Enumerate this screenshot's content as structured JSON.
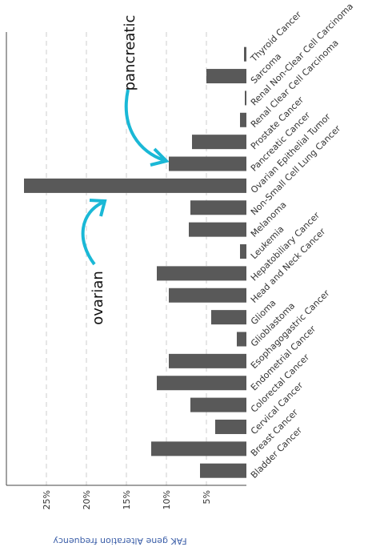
{
  "chart_data": {
    "type": "bar",
    "orientation": "horizontal",
    "categories": [
      "Thyroid Cancer",
      "Sarcoma",
      "Renal Non-Clear Cell Carcinoma",
      "Renal Clear Cell Carcinoma",
      "Prostate Cancer",
      "Pancreatic Cancer",
      "Ovarian Epithelial Tumor",
      "Non-Small Cell Lung Cancer",
      "Melanoma",
      "Leukemia",
      "Hepatobiliary Cancer",
      "Head and Neck Cancer",
      "Glioma",
      "Glioblastoma",
      "Esophagogastric Cancer",
      "Endometrial Cancer",
      "Colorectal Cancer",
      "Cervical Cancer",
      "Breast Cancer",
      "Bladder Cancer"
    ],
    "values": [
      0.3,
      5.0,
      0.2,
      0.8,
      6.8,
      9.7,
      27.8,
      7.0,
      7.2,
      0.8,
      11.2,
      9.7,
      4.4,
      1.2,
      9.7,
      11.2,
      7.0,
      3.9,
      11.9,
      5.8
    ],
    "color": "#595959",
    "xlim": [
      0,
      30
    ],
    "xticks": [
      {
        "value": 5,
        "label": "5%"
      },
      {
        "value": 10,
        "label": "10%"
      },
      {
        "value": 15,
        "label": "15%"
      },
      {
        "value": 20,
        "label": "20%"
      },
      {
        "value": 25,
        "label": "25%"
      }
    ],
    "grid": true,
    "xlabel": "FAK gene Alteration frequency",
    "annotations": [
      "pancreatic",
      "ovarian"
    ]
  }
}
